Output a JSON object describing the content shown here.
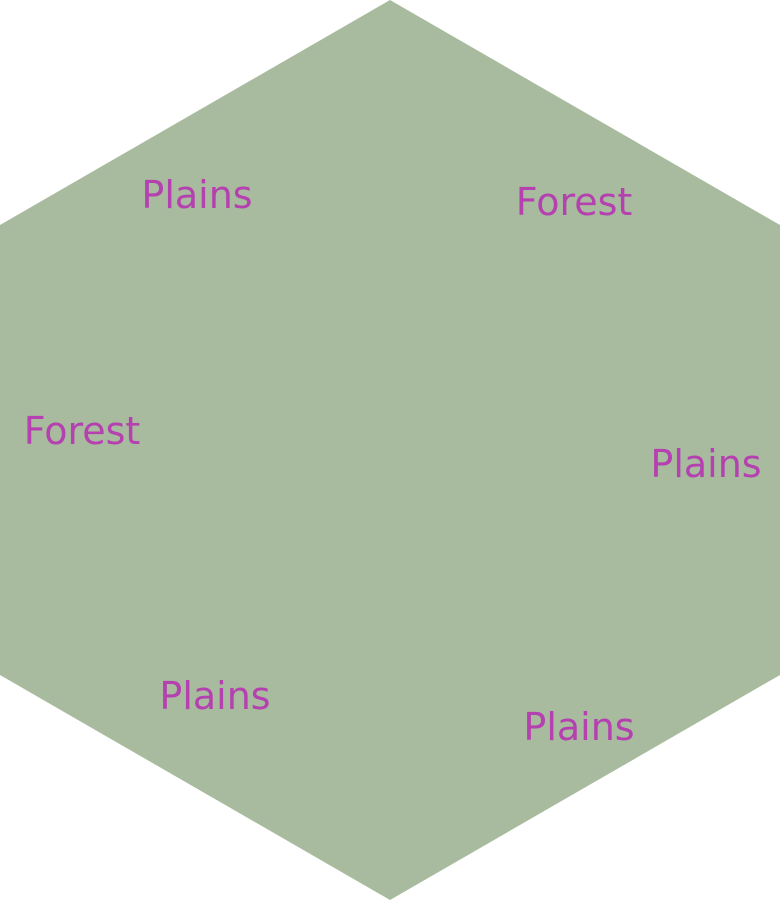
{
  "tile": {
    "fill_color": "#a8bb9e",
    "label_color": "#b540b0",
    "edges": {
      "top_left": "Plains",
      "top_right": "Forest",
      "left": "Forest",
      "right": "Plains",
      "bottom_left": "Plains",
      "bottom_right": "Plains"
    }
  }
}
